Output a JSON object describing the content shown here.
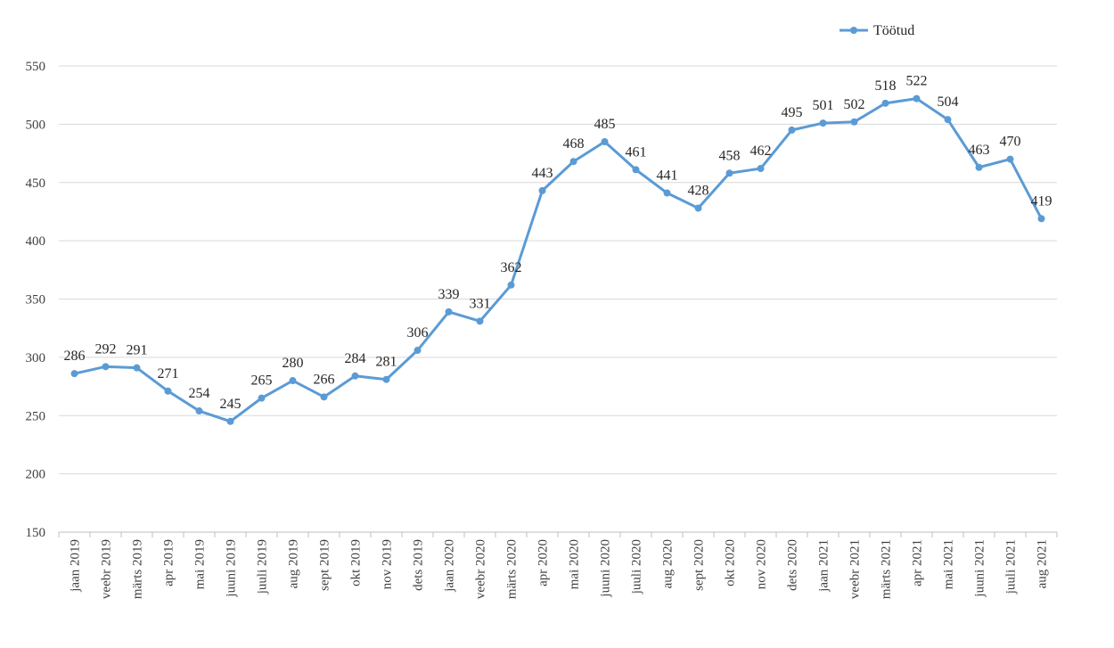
{
  "chart_data": {
    "type": "line",
    "title": "",
    "xlabel": "",
    "ylabel": "",
    "ylim": [
      150,
      550
    ],
    "yticks": [
      150,
      200,
      250,
      300,
      350,
      400,
      450,
      500,
      550
    ],
    "grid": true,
    "legend_position": "top-right",
    "categories": [
      "jaan 2019",
      "veebr 2019",
      "märts 2019",
      "apr 2019",
      "mai 2019",
      "juuni 2019",
      "juuli 2019",
      "aug 2019",
      "sept 2019",
      "okt 2019",
      "nov 2019",
      "dets 2019",
      "jaan 2020",
      "veebr 2020",
      "märts 2020",
      "apr 2020",
      "mai 2020",
      "juuni 2020",
      "juuli 2020",
      "aug 2020",
      "sept 2020",
      "okt 2020",
      "nov 2020",
      "dets 2020",
      "jaan 2021",
      "veebr 2021",
      "märts 2021",
      "apr 2021",
      "mai 2021",
      "juuni 2021",
      "juuli 2021",
      "aug 2021"
    ],
    "series": [
      {
        "name": "Töötud",
        "color": "#5b9bd5",
        "values": [
          286,
          292,
          291,
          271,
          254,
          245,
          265,
          280,
          266,
          284,
          281,
          306,
          339,
          331,
          362,
          443,
          468,
          485,
          461,
          441,
          428,
          458,
          462,
          495,
          501,
          502,
          518,
          522,
          504,
          463,
          470,
          419
        ]
      }
    ]
  }
}
